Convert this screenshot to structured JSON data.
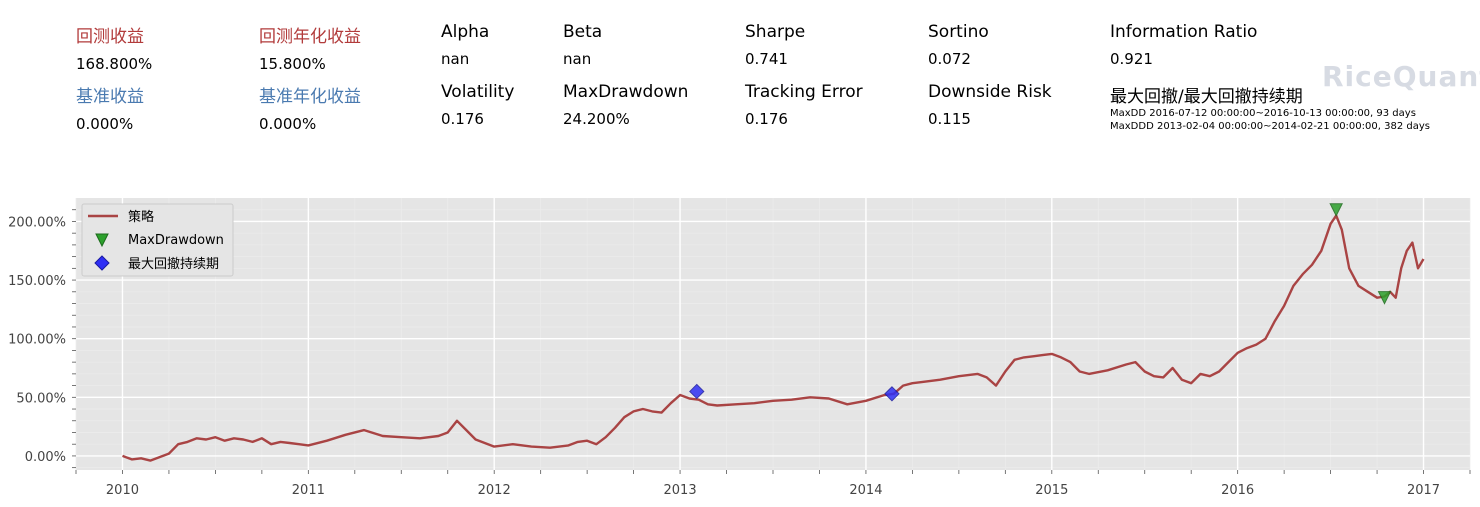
{
  "metrics": {
    "row1": [
      {
        "label": "回测收益",
        "value": "168.800%",
        "color": "#b23b3b"
      },
      {
        "label": "回测年化收益",
        "value": "15.800%",
        "color": "#b23b3b"
      },
      {
        "label": "Alpha",
        "value": "nan",
        "color": "#000000"
      },
      {
        "label": "Beta",
        "value": "nan",
        "color": "#000000"
      },
      {
        "label": "Sharpe",
        "value": "0.741",
        "color": "#000000"
      },
      {
        "label": "Sortino",
        "value": "0.072",
        "color": "#000000"
      },
      {
        "label": "Information Ratio",
        "value": "0.921",
        "color": "#000000"
      }
    ],
    "row2": [
      {
        "label": "基准收益",
        "value": "0.000%",
        "color": "#4a7ab0"
      },
      {
        "label": "基准年化收益",
        "value": "0.000%",
        "color": "#4a7ab0"
      },
      {
        "label": "Volatility",
        "value": "0.176",
        "color": "#000000"
      },
      {
        "label": "MaxDrawdown",
        "value": "24.200%",
        "color": "#000000"
      },
      {
        "label": "Tracking Error",
        "value": "0.176",
        "color": "#000000"
      },
      {
        "label": "Downside Risk",
        "value": "0.115",
        "color": "#000000"
      }
    ],
    "maxdd_title": "最大回撤/最大回撤持续期",
    "maxdd_line1": "MaxDD  2016-07-12 00:00:00~2016-10-13 00:00:00, 93 days",
    "maxdd_line2": "MaxDDD 2013-02-04 00:00:00~2014-02-21 00:00:00, 382 days"
  },
  "watermark": "RiceQuant",
  "chart_data": {
    "type": "line",
    "x_tick_labels": [
      "2010",
      "2011",
      "2012",
      "2013",
      "2014",
      "2015",
      "2016",
      "2017"
    ],
    "y_tick_labels": [
      "0.00%",
      "50.00%",
      "100.00%",
      "150.00%",
      "200.00%"
    ],
    "y_ticks": [
      0,
      50,
      100,
      150,
      200
    ],
    "xlim": [
      2009.75,
      2017.25
    ],
    "ylim": [
      -12,
      220
    ],
    "grid": true,
    "legend_position": "top-left",
    "series": [
      {
        "name": "策略",
        "color": "#a94444",
        "x": [
          2010.0,
          2010.05,
          2010.1,
          2010.15,
          2010.2,
          2010.25,
          2010.3,
          2010.35,
          2010.4,
          2010.45,
          2010.5,
          2010.55,
          2010.6,
          2010.65,
          2010.7,
          2010.75,
          2010.8,
          2010.85,
          2010.9,
          2010.95,
          2011.0,
          2011.1,
          2011.2,
          2011.3,
          2011.4,
          2011.5,
          2011.6,
          2011.7,
          2011.75,
          2011.8,
          2011.85,
          2011.9,
          2012.0,
          2012.1,
          2012.2,
          2012.3,
          2012.4,
          2012.45,
          2012.5,
          2012.55,
          2012.6,
          2012.65,
          2012.7,
          2012.75,
          2012.8,
          2012.85,
          2012.9,
          2012.95,
          2013.0,
          2013.05,
          2013.1,
          2013.15,
          2013.2,
          2013.3,
          2013.4,
          2013.5,
          2013.6,
          2013.7,
          2013.8,
          2013.9,
          2014.0,
          2014.1,
          2014.15,
          2014.2,
          2014.25,
          2014.3,
          2014.4,
          2014.5,
          2014.6,
          2014.65,
          2014.7,
          2014.75,
          2014.8,
          2014.85,
          2014.9,
          2014.95,
          2015.0,
          2015.05,
          2015.1,
          2015.15,
          2015.2,
          2015.3,
          2015.4,
          2015.45,
          2015.5,
          2015.55,
          2015.6,
          2015.65,
          2015.7,
          2015.75,
          2015.8,
          2015.85,
          2015.9,
          2015.95,
          2016.0,
          2016.05,
          2016.1,
          2016.15,
          2016.2,
          2016.25,
          2016.3,
          2016.35,
          2016.4,
          2016.45,
          2016.5,
          2016.53,
          2016.56,
          2016.6,
          2016.65,
          2016.7,
          2016.75,
          2016.79,
          2016.82,
          2016.85,
          2016.88,
          2016.91,
          2016.94,
          2016.97,
          2017.0
        ],
        "y": [
          0,
          -3,
          -2,
          -4,
          -1,
          2,
          10,
          12,
          15,
          14,
          16,
          13,
          15,
          14,
          12,
          15,
          10,
          12,
          11,
          10,
          9,
          13,
          18,
          22,
          17,
          16,
          15,
          17,
          20,
          30,
          22,
          14,
          8,
          10,
          8,
          7,
          9,
          12,
          13,
          10,
          16,
          24,
          33,
          38,
          40,
          38,
          37,
          45,
          52,
          49,
          48,
          44,
          43,
          44,
          45,
          47,
          48,
          50,
          49,
          44,
          47,
          52,
          53,
          60,
          62,
          63,
          65,
          68,
          70,
          67,
          60,
          72,
          82,
          84,
          85,
          86,
          87,
          84,
          80,
          72,
          70,
          73,
          78,
          80,
          72,
          68,
          67,
          75,
          65,
          62,
          70,
          68,
          72,
          80,
          88,
          92,
          95,
          100,
          115,
          128,
          145,
          155,
          163,
          175,
          198,
          205,
          193,
          160,
          145,
          140,
          135,
          136,
          140,
          135,
          160,
          175,
          182,
          160,
          168
        ],
        "markers_maxdd": [
          {
            "x": 2016.53,
            "y": 210
          },
          {
            "x": 2016.79,
            "y": 135
          }
        ],
        "markers_maxddd": [
          {
            "x": 2013.09,
            "y": 55
          },
          {
            "x": 2014.14,
            "y": 53
          }
        ]
      }
    ],
    "legend": [
      "策略",
      "MaxDrawdown",
      "最大回撤持续期"
    ]
  }
}
